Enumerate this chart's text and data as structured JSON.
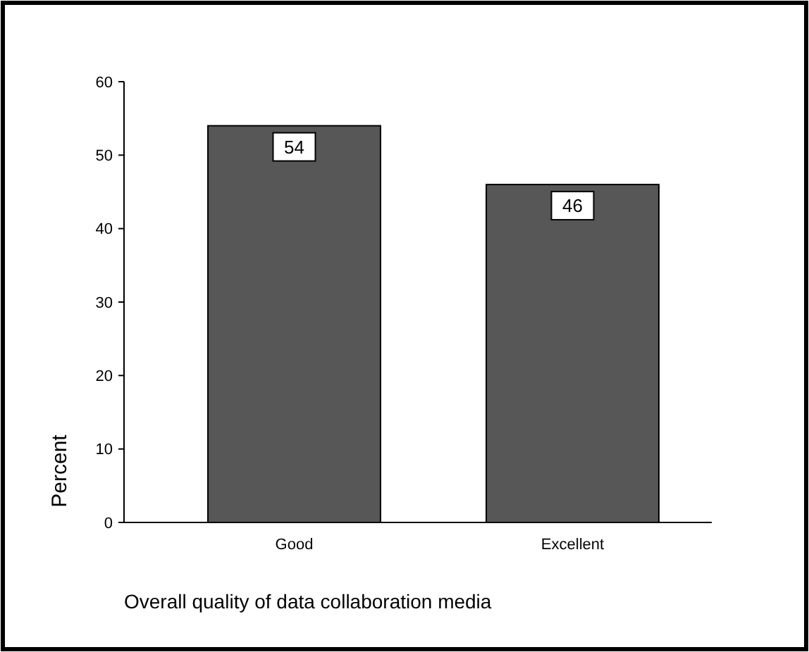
{
  "chart_data": {
    "type": "bar",
    "categories": [
      "Good",
      "Excellent"
    ],
    "values": [
      54,
      46
    ],
    "color": "#575757",
    "ylim": [
      0,
      60
    ],
    "yticks": [
      0,
      10,
      20,
      30,
      40,
      50,
      60
    ],
    "ylabel": "Percent",
    "xlabel": "Overall quality of data collaboration media",
    "data_labels": true,
    "grid": false
  }
}
